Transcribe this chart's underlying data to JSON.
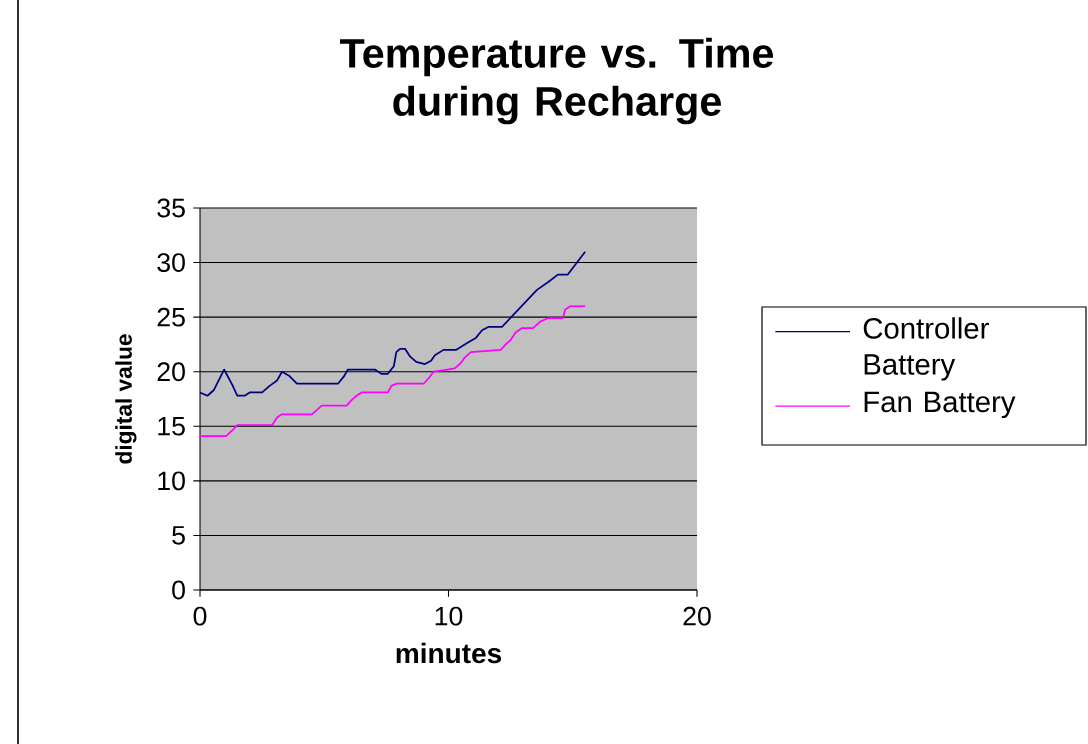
{
  "chart_data": {
    "type": "line",
    "title": "Temperature vs. Time during Recharge",
    "xlabel": "minutes",
    "ylabel": "digital value",
    "xlim": [
      0,
      20
    ],
    "xticks": [
      0,
      10,
      20
    ],
    "ylim": [
      0,
      35
    ],
    "yticks": [
      0,
      5,
      10,
      15,
      20,
      25,
      30,
      35
    ],
    "grid": "y",
    "legend": "right",
    "marker": "none",
    "series": [
      {
        "name": "Controller Battery",
        "color": "#000080",
        "x": [
          0,
          0.3,
          0.55,
          0.97,
          1.3,
          1.5,
          1.8,
          2.0,
          2.5,
          2.8,
          3.1,
          3.3,
          3.6,
          3.9,
          5.55,
          5.8,
          5.95,
          7.04,
          7.3,
          7.55,
          7.8,
          7.9,
          8.05,
          8.25,
          8.45,
          8.7,
          9.05,
          9.3,
          9.45,
          9.8,
          10.3,
          10.8,
          11.1,
          11.35,
          11.6,
          12.15,
          13.56,
          14.0,
          14.4,
          14.8,
          15.1,
          15.5
        ],
        "values": [
          18.1,
          17.8,
          18.3,
          20.2,
          18.8,
          17.8,
          17.8,
          18.1,
          18.1,
          18.7,
          19.2,
          20,
          19.6,
          18.9,
          18.9,
          19.6,
          20.2,
          20.2,
          19.8,
          19.8,
          20.5,
          21.8,
          22.1,
          22.1,
          21.4,
          20.9,
          20.7,
          21,
          21.5,
          22,
          22,
          22.7,
          23.1,
          23.8,
          24.1,
          24.1,
          27.5,
          28.2,
          28.9,
          28.9,
          29.8,
          31
        ]
      },
      {
        "name": "Fan Battery",
        "color": "#ff00ff",
        "x": [
          0,
          1.05,
          1.33,
          1.5,
          2.9,
          3.1,
          3.3,
          4.5,
          4.75,
          4.9,
          5.9,
          6.1,
          6.3,
          6.5,
          7.56,
          7.7,
          7.9,
          9.0,
          9.2,
          9.4,
          9.95,
          10.25,
          10.5,
          10.65,
          10.9,
          12.1,
          12.3,
          12.5,
          12.7,
          12.96,
          13.4,
          13.7,
          14.0,
          14.6,
          14.7,
          14.9,
          15.5
        ],
        "values": [
          14.1,
          14.1,
          14.7,
          15.1,
          15.1,
          15.8,
          16.1,
          16.1,
          16.6,
          16.9,
          16.9,
          17.4,
          17.8,
          18.1,
          18.1,
          18.7,
          18.9,
          18.9,
          19.4,
          20,
          20.2,
          20.3,
          20.8,
          21.3,
          21.8,
          22,
          22.5,
          22.9,
          23.6,
          24,
          24,
          24.6,
          24.9,
          24.9,
          25.7,
          26,
          26
        ]
      }
    ]
  }
}
